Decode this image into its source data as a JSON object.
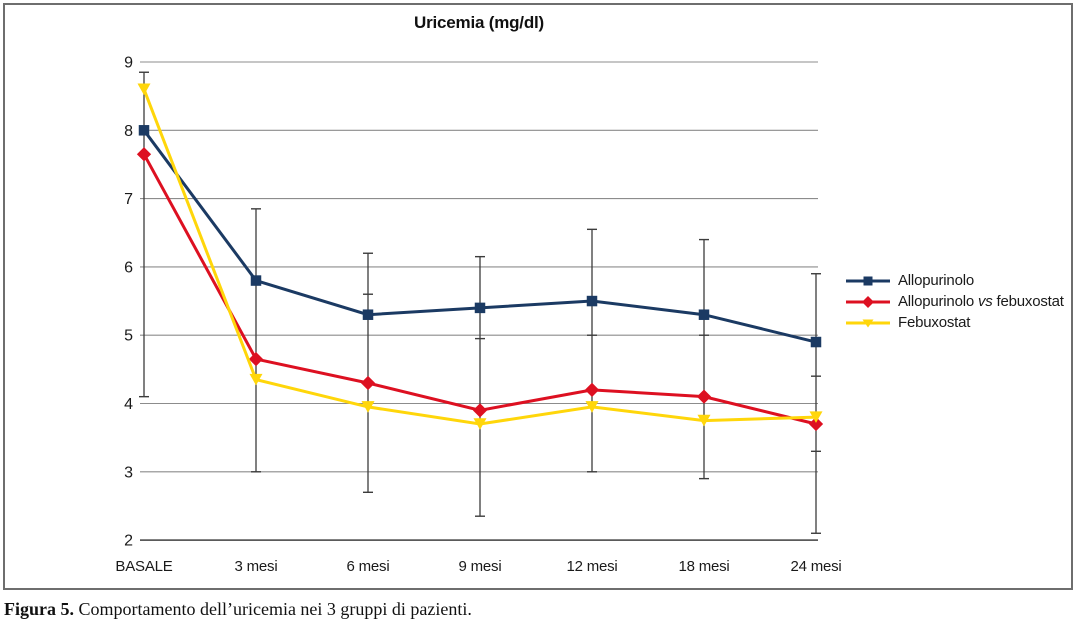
{
  "chart_data": {
    "type": "line",
    "title": "Uricemia (mg/dl)",
    "categories": [
      "BASALE",
      "3 mesi",
      "6 mesi",
      "9 mesi",
      "12 mesi",
      "18 mesi",
      "24 mesi"
    ],
    "series": [
      {
        "name": "Allopurinolo",
        "color": "#1B3A63",
        "marker": "square",
        "values": [
          8.0,
          5.8,
          5.3,
          5.4,
          5.5,
          5.3,
          4.9
        ]
      },
      {
        "name": "Allopurinolo vs febuxostat",
        "color": "#DD1021",
        "marker": "diamond",
        "values": [
          7.65,
          4.65,
          4.3,
          3.9,
          4.2,
          4.1,
          3.7
        ]
      },
      {
        "name": "Febuxostat",
        "color": "#FFD60A",
        "marker": "triangle-down",
        "values": [
          8.6,
          4.35,
          3.95,
          3.7,
          3.95,
          3.75,
          3.8
        ]
      }
    ],
    "error_bars": [
      {
        "category_index": 0,
        "from": 4.1,
        "to": 8.85,
        "inner_caps": []
      },
      {
        "category_index": 1,
        "from": 3.0,
        "to": 6.85,
        "inner_caps": []
      },
      {
        "category_index": 2,
        "from": 2.7,
        "to": 6.2,
        "inner_caps": [
          5.6
        ]
      },
      {
        "category_index": 3,
        "from": 2.35,
        "to": 6.15,
        "inner_caps": [
          4.95
        ]
      },
      {
        "category_index": 4,
        "from": 3.0,
        "to": 6.55,
        "inner_caps": [
          5.0
        ]
      },
      {
        "category_index": 5,
        "from": 2.9,
        "to": 6.4,
        "inner_caps": [
          5.0
        ]
      },
      {
        "category_index": 6,
        "from": 2.1,
        "to": 5.9,
        "inner_caps": [
          4.4,
          3.3
        ]
      }
    ],
    "y_ticks": [
      9,
      8,
      7,
      6,
      5,
      4,
      3,
      2
    ],
    "ylim": [
      2,
      9
    ],
    "grid": true,
    "legend_position": "right",
    "colors": {
      "gridline": "#8C8C8C",
      "baseline": "#5A5A5A",
      "error_bar": "#3C3C3C",
      "frame": "#6e6e6e"
    }
  },
  "caption": {
    "prefix": "Figura 5.",
    "text": "Comportamento dell’uricemia nei 3 gruppi di pazienti."
  }
}
